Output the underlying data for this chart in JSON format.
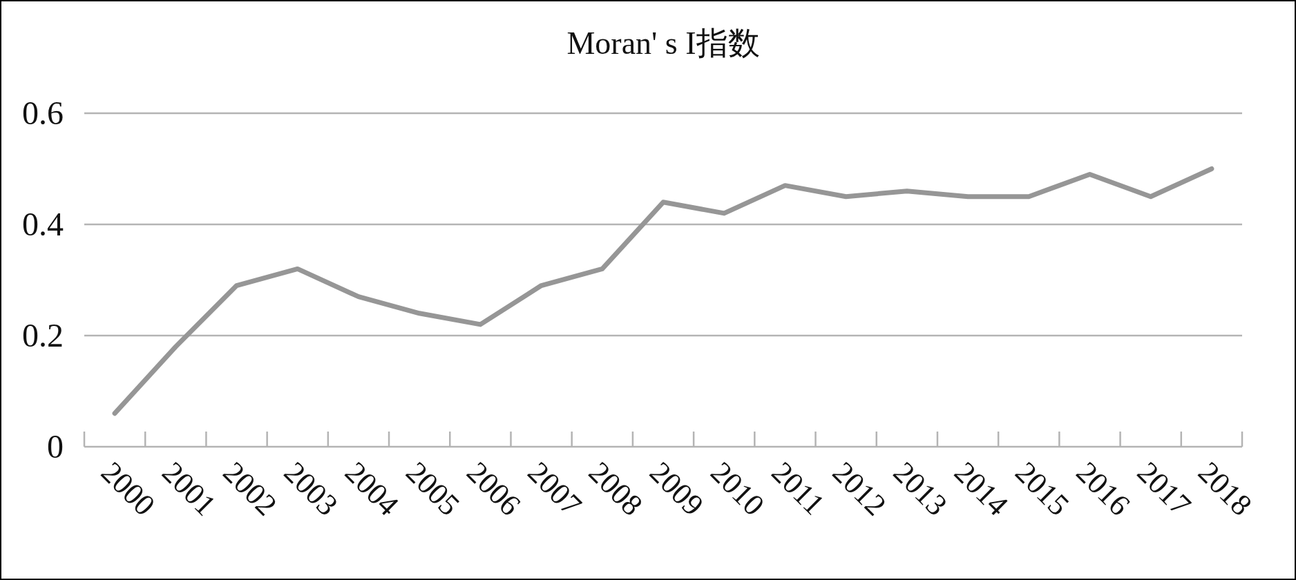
{
  "chart_data": {
    "type": "line",
    "title": "Moran' s I指数",
    "categories": [
      "2000",
      "2001",
      "2002",
      "2003",
      "2004",
      "2005",
      "2006",
      "2007",
      "2008",
      "2009",
      "2010",
      "2011",
      "2012",
      "2013",
      "2014",
      "2015",
      "2016",
      "2017",
      "2018"
    ],
    "values": [
      0.06,
      0.18,
      0.29,
      0.32,
      0.27,
      0.24,
      0.22,
      0.29,
      0.32,
      0.44,
      0.42,
      0.47,
      0.45,
      0.46,
      0.45,
      0.45,
      0.49,
      0.45,
      0.5
    ],
    "color": "#969696",
    "ylim": [
      0,
      0.6
    ],
    "yticks": [
      0,
      0.2,
      0.4,
      0.6
    ],
    "grid": "y"
  }
}
